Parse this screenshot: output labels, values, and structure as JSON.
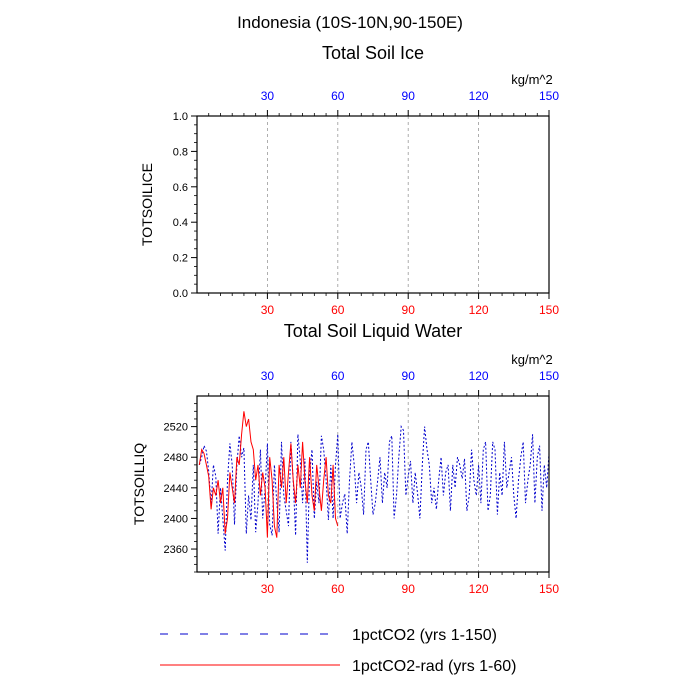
{
  "page_title": "Indonesia (10S-10N,90-150E)",
  "colors": {
    "top_ticks": "#0000ff",
    "bottom_ticks": "#ff0000",
    "series_1pct": "#0000cc",
    "series_rad": "#ff0000",
    "grid": "#999999"
  },
  "chart_data": [
    {
      "type": "line",
      "title": "Total Soil Ice",
      "units": "kg/m^2",
      "ylabel": "TOTSOILICE",
      "xlim": [
        0,
        150
      ],
      "ylim": [
        0,
        1
      ],
      "xticks": [
        30,
        60,
        90,
        120,
        150
      ],
      "yticks": [
        0.0,
        0.2,
        0.4,
        0.6,
        0.8,
        1.0
      ],
      "ytick_labels": [
        "0.0",
        "0.2",
        "0.4",
        "0.6",
        "0.8",
        "1.0"
      ],
      "grid": "vertical dashed at x ticks",
      "series": []
    },
    {
      "type": "line",
      "title": "Total Soil Liquid Water",
      "units": "kg/m^2",
      "ylabel": "TOTSOILLIQ",
      "xlim": [
        0,
        150
      ],
      "ylim": [
        2330,
        2560
      ],
      "xticks": [
        30,
        60,
        90,
        120,
        150
      ],
      "yticks": [
        2360,
        2400,
        2440,
        2480,
        2520
      ],
      "ytick_labels": [
        "2360",
        "2400",
        "2440",
        "2480",
        "2520"
      ],
      "grid": "vertical dashed at x ticks",
      "series": [
        {
          "name": "1pctCO2 (yrs 1-150)",
          "style": "dashed",
          "color": "#0000cc",
          "x": [
            1,
            2,
            3,
            4,
            5,
            6,
            7,
            8,
            9,
            10,
            11,
            12,
            13,
            14,
            15,
            16,
            17,
            18,
            19,
            20,
            21,
            22,
            23,
            24,
            25,
            26,
            27,
            28,
            29,
            30,
            31,
            32,
            33,
            34,
            35,
            36,
            37,
            38,
            39,
            40,
            41,
            42,
            43,
            44,
            45,
            46,
            47,
            48,
            49,
            50,
            51,
            52,
            53,
            54,
            55,
            56,
            57,
            58,
            59,
            60,
            61,
            62,
            63,
            64,
            65,
            66,
            67,
            68,
            69,
            70,
            71,
            72,
            73,
            74,
            75,
            76,
            77,
            78,
            79,
            80,
            81,
            82,
            83,
            84,
            85,
            86,
            87,
            88,
            89,
            90,
            91,
            92,
            93,
            94,
            95,
            96,
            97,
            98,
            99,
            100,
            101,
            102,
            103,
            104,
            105,
            106,
            107,
            108,
            109,
            110,
            111,
            112,
            113,
            114,
            115,
            116,
            117,
            118,
            119,
            120,
            121,
            122,
            123,
            124,
            125,
            126,
            127,
            128,
            129,
            130,
            131,
            132,
            133,
            134,
            135,
            136,
            137,
            138,
            139,
            140,
            141,
            142,
            143,
            144,
            145,
            146,
            147,
            148,
            149,
            150
          ],
          "values": [
            2470,
            2480,
            2495,
            2488,
            2462,
            2418,
            2470,
            2455,
            2380,
            2440,
            2400,
            2358,
            2450,
            2498,
            2470,
            2392,
            2470,
            2508,
            2480,
            2492,
            2380,
            2430,
            2398,
            2470,
            2382,
            2420,
            2490,
            2400,
            2438,
            2498,
            2392,
            2378,
            2470,
            2420,
            2382,
            2500,
            2430,
            2410,
            2390,
            2500,
            2450,
            2378,
            2510,
            2475,
            2420,
            2478,
            2342,
            2458,
            2490,
            2400,
            2448,
            2420,
            2508,
            2490,
            2450,
            2398,
            2470,
            2400,
            2470,
            2510,
            2400,
            2420,
            2432,
            2380,
            2450,
            2500,
            2470,
            2420,
            2460,
            2440,
            2405,
            2490,
            2500,
            2450,
            2405,
            2420,
            2450,
            2480,
            2420,
            2460,
            2440,
            2500,
            2508,
            2400,
            2430,
            2480,
            2520,
            2515,
            2430,
            2455,
            2475,
            2420,
            2460,
            2432,
            2400,
            2470,
            2520,
            2490,
            2470,
            2420,
            2440,
            2412,
            2450,
            2480,
            2430,
            2460,
            2470,
            2410,
            2470,
            2440,
            2480,
            2470,
            2452,
            2478,
            2410,
            2430,
            2490,
            2450,
            2430,
            2470,
            2420,
            2490,
            2500,
            2410,
            2430,
            2500,
            2490,
            2405,
            2460,
            2430,
            2500,
            2440,
            2460,
            2480,
            2430,
            2400,
            2450,
            2480,
            2500,
            2420,
            2450,
            2470,
            2510,
            2420,
            2480,
            2495,
            2410,
            2470,
            2440,
            2485
          ]
        },
        {
          "name": "1pctCO2-rad (yrs 1-60)",
          "style": "solid",
          "color": "#ff0000",
          "x": [
            1,
            2,
            3,
            4,
            5,
            6,
            7,
            8,
            9,
            10,
            11,
            12,
            13,
            14,
            15,
            16,
            17,
            18,
            19,
            20,
            21,
            22,
            23,
            24,
            25,
            26,
            27,
            28,
            29,
            30,
            31,
            32,
            33,
            34,
            35,
            36,
            37,
            38,
            39,
            40,
            41,
            42,
            43,
            44,
            45,
            46,
            47,
            48,
            49,
            50,
            51,
            52,
            53,
            54,
            55,
            56,
            57,
            58,
            59,
            60
          ],
          "values": [
            2470,
            2490,
            2485,
            2470,
            2455,
            2412,
            2440,
            2430,
            2450,
            2420,
            2440,
            2380,
            2400,
            2460,
            2440,
            2420,
            2480,
            2470,
            2510,
            2540,
            2520,
            2530,
            2500,
            2490,
            2450,
            2470,
            2430,
            2460,
            2440,
            2375,
            2480,
            2450,
            2390,
            2375,
            2470,
            2440,
            2480,
            2420,
            2460,
            2498,
            2450,
            2420,
            2470,
            2440,
            2500,
            2450,
            2420,
            2480,
            2430,
            2410,
            2470,
            2440,
            2410,
            2450,
            2480,
            2430,
            2420,
            2470,
            2400,
            2390
          ]
        }
      ]
    }
  ],
  "legend": [
    {
      "label": "1pctCO2 (yrs 1-150)",
      "style": "dashed",
      "color": "#0000cc"
    },
    {
      "label": "1pctCO2-rad (yrs 1-60)",
      "style": "solid",
      "color": "#ff0000"
    }
  ]
}
